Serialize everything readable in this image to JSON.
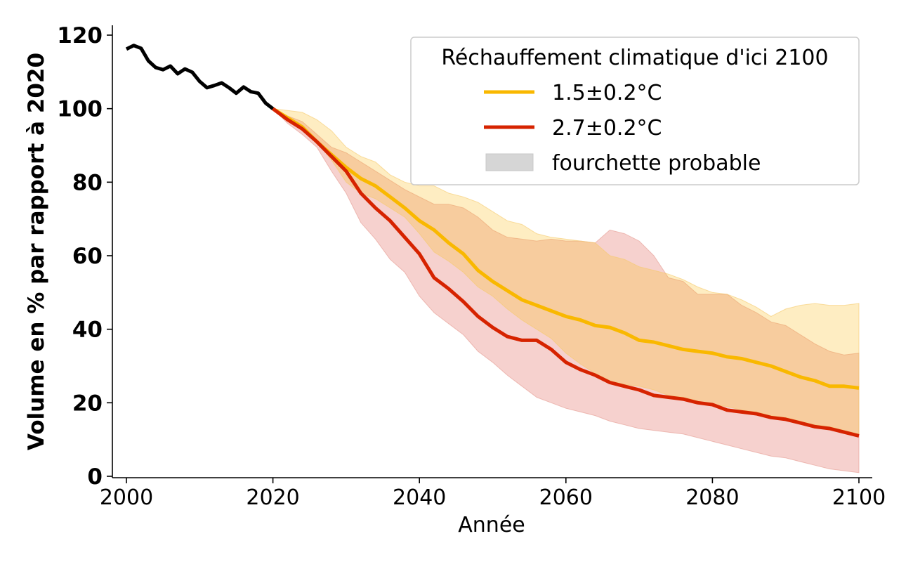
{
  "chart_data": {
    "type": "line",
    "title": "",
    "xlabel": "Année",
    "ylabel": "Volume en % par rapport à 2020",
    "xlim": [
      1998,
      2102
    ],
    "ylim": [
      -1,
      123
    ],
    "xticks": [
      2000,
      2020,
      2040,
      2060,
      2080,
      2100
    ],
    "yticks": [
      0,
      20,
      40,
      60,
      80,
      100,
      120
    ],
    "grid": false,
    "legend": {
      "title": "Réchauffement climatique d'ici 2100",
      "placement": "top-right",
      "entries": [
        {
          "label": "1.5±0.2°C",
          "kind": "line",
          "color": "#f9b800"
        },
        {
          "label": "2.7±0.2°C",
          "kind": "line",
          "color": "#d62300"
        },
        {
          "label": "fourchette probable",
          "kind": "patch",
          "color": "#d6d6d6"
        }
      ]
    },
    "historical": {
      "name": "observations",
      "color": "#000000",
      "x": [
        2000,
        2001,
        2002,
        2003,
        2004,
        2005,
        2006,
        2007,
        2008,
        2009,
        2010,
        2011,
        2012,
        2013,
        2014,
        2015,
        2016,
        2017,
        2018,
        2019,
        2020
      ],
      "values": [
        116.2,
        117.2,
        116.4,
        113,
        111.2,
        110.6,
        111.6,
        109.5,
        110.8,
        109.9,
        107.4,
        105.7,
        106.3,
        107,
        105.7,
        104.2,
        105.9,
        104.6,
        104.2,
        101.5,
        100
      ]
    },
    "series": [
      {
        "name": "1.5±0.2°C",
        "color": "#f9b800",
        "band_color": "#fdd980",
        "x": [
          2020,
          2022,
          2024,
          2026,
          2028,
          2030,
          2032,
          2034,
          2036,
          2038,
          2040,
          2042,
          2044,
          2046,
          2048,
          2050,
          2052,
          2054,
          2056,
          2058,
          2060,
          2062,
          2064,
          2066,
          2068,
          2070,
          2072,
          2074,
          2076,
          2078,
          2080,
          2082,
          2084,
          2086,
          2088,
          2090,
          2092,
          2094,
          2096,
          2098,
          2100
        ],
        "values": [
          100,
          97.5,
          95,
          91,
          87.5,
          84,
          81,
          79,
          76,
          73,
          69.5,
          67,
          63.5,
          60.5,
          56,
          53,
          50.5,
          48,
          46.5,
          45,
          43.5,
          42.5,
          41,
          40.5,
          39,
          37,
          36.5,
          35.5,
          34.5,
          34,
          33.5,
          32.5,
          32,
          31,
          30,
          28.5,
          27,
          26,
          24.5,
          24.5,
          24
        ],
        "band_upper": [
          100,
          99.5,
          99,
          97,
          94,
          89.5,
          87,
          85.5,
          82,
          80,
          79,
          79,
          77,
          76,
          74.5,
          72,
          69.5,
          68.5,
          66,
          65,
          64.5,
          64,
          63.5,
          60,
          59,
          57,
          56,
          55,
          53.5,
          51.5,
          50,
          49.5,
          48,
          46,
          43.5,
          45.5,
          46.5,
          47,
          46.5,
          46.5,
          47
        ],
        "band_lower": [
          100,
          97,
          94.5,
          91,
          86,
          80,
          77,
          75.5,
          73,
          70.5,
          66,
          61,
          58.5,
          55.5,
          51.5,
          49,
          45.5,
          42.5,
          40,
          37.5,
          33.5,
          30.5,
          28,
          26,
          25,
          24.5,
          23.5,
          22,
          21.5,
          20.5,
          19.5,
          19,
          18,
          17.5,
          16.5,
          16,
          15,
          14,
          13.5,
          12.5,
          11.5
        ]
      },
      {
        "name": "2.7±0.2°C",
        "color": "#d62300",
        "band_color": "#eea7a0",
        "x": [
          2020,
          2022,
          2024,
          2026,
          2028,
          2030,
          2032,
          2034,
          2036,
          2038,
          2040,
          2042,
          2044,
          2046,
          2048,
          2050,
          2052,
          2054,
          2056,
          2058,
          2060,
          2062,
          2064,
          2066,
          2068,
          2070,
          2072,
          2074,
          2076,
          2078,
          2080,
          2082,
          2084,
          2086,
          2088,
          2090,
          2092,
          2094,
          2096,
          2098,
          2100
        ],
        "values": [
          100,
          97,
          94.5,
          91,
          87,
          83,
          77,
          73,
          69.5,
          65,
          60.5,
          54,
          51,
          47.5,
          43.5,
          40.5,
          38,
          37,
          37,
          34.5,
          31,
          29,
          27.5,
          25.5,
          24.5,
          23.5,
          22,
          21.5,
          21,
          20,
          19.5,
          18,
          17.5,
          17,
          16,
          15.5,
          14.5,
          13.5,
          13,
          12,
          11
        ],
        "band_upper": [
          100,
          98,
          96.5,
          93,
          89.5,
          88,
          85.5,
          83,
          80.5,
          78,
          76,
          74,
          74,
          73,
          70.5,
          67,
          65,
          64.5,
          64,
          64.5,
          64,
          64,
          63.5,
          67,
          66,
          64,
          60,
          54,
          53,
          49.5,
          49.5,
          49.5,
          46.5,
          44.5,
          42,
          41,
          38.5,
          36,
          34,
          33,
          33.5
        ],
        "band_lower": [
          100,
          96,
          93,
          89.5,
          83,
          77,
          69,
          64.5,
          59,
          55.5,
          49,
          44.5,
          41.5,
          38.5,
          34,
          31,
          27.5,
          24.5,
          21.5,
          20,
          18.5,
          17.5,
          16.5,
          15,
          14,
          13,
          12.5,
          12,
          11.5,
          10.5,
          9.5,
          8.5,
          7.5,
          6.5,
          5.5,
          5,
          4,
          3,
          2,
          1.5,
          1
        ]
      }
    ]
  }
}
